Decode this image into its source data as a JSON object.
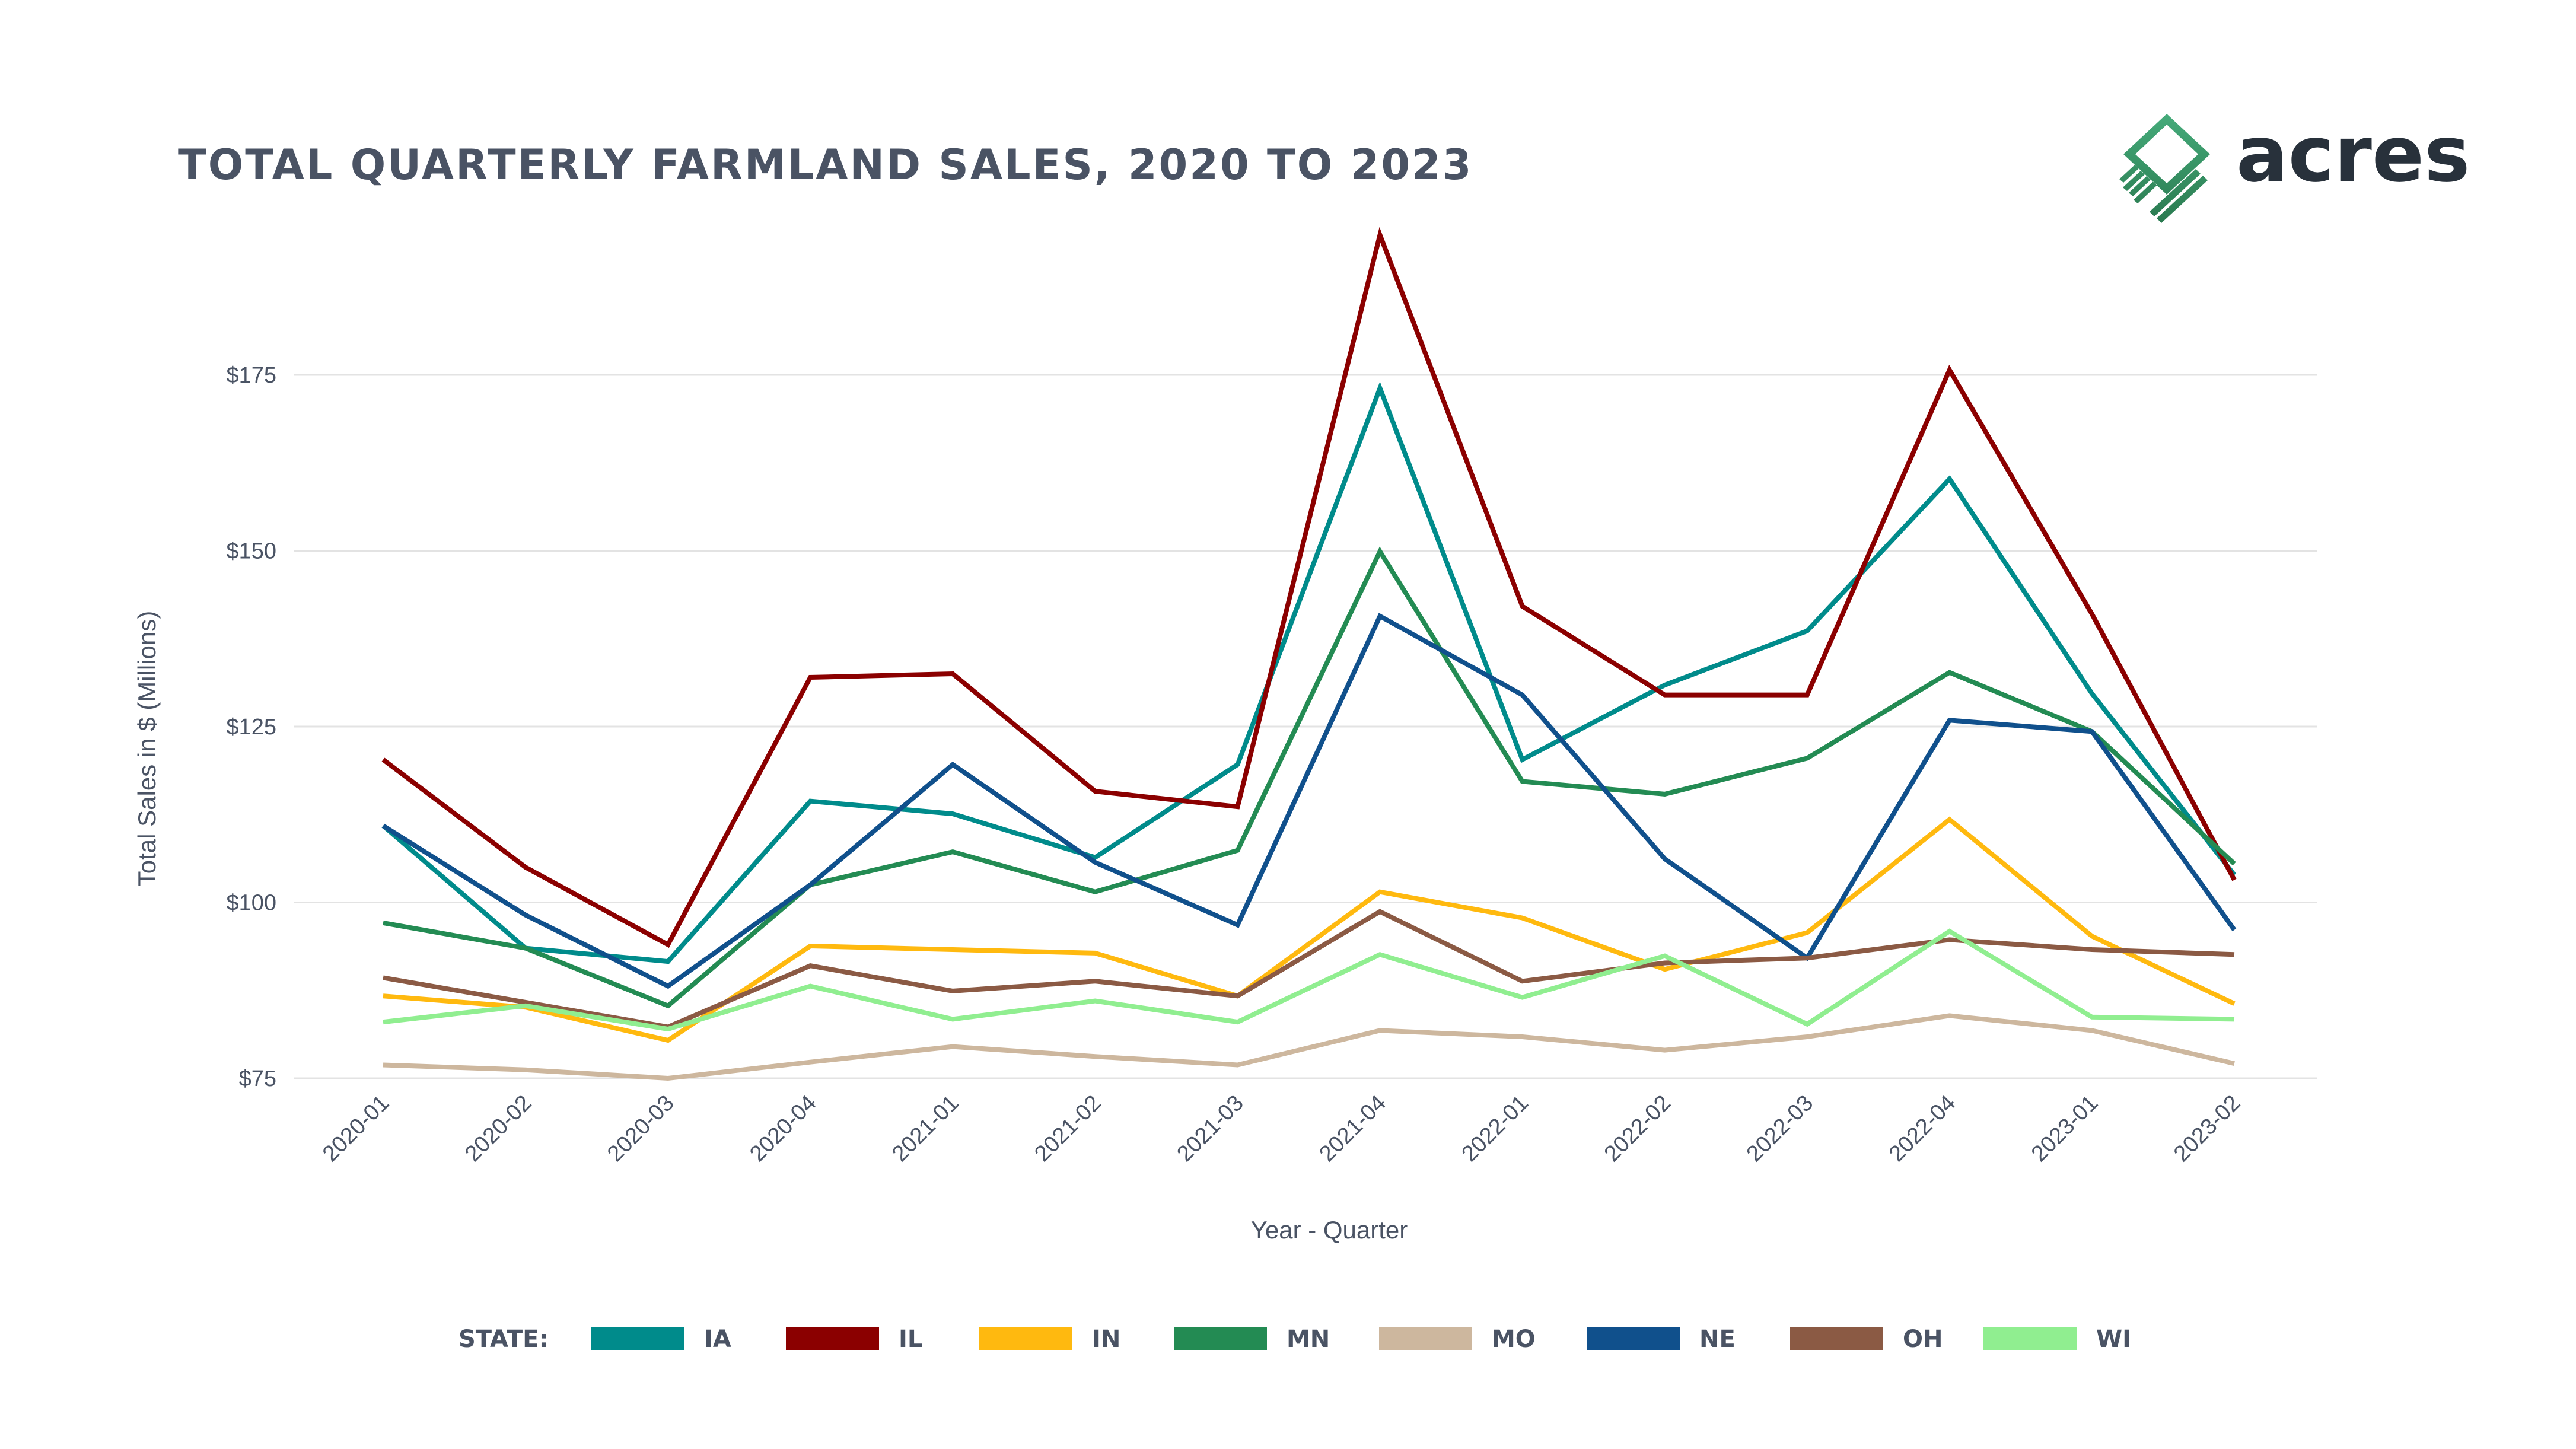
{
  "chart_data": {
    "type": "line",
    "title": "TOTAL QUARTERLY FARMLAND SALES, 2020 TO 2023",
    "xlabel": "Year - Quarter",
    "ylabel": "Total Sales in $ (Millions)",
    "ylim": [
      75,
      195
    ],
    "yticks": [
      75,
      100,
      125,
      150,
      175
    ],
    "ytick_labels": [
      "$75",
      "$100",
      "$125",
      "$150",
      "$175"
    ],
    "grid": "horizontal",
    "legend_title": "STATE:",
    "legend_placement": "bottom",
    "categories": [
      "2020-01",
      "2020-02",
      "2020-03",
      "2020-04",
      "2021-01",
      "2021-02",
      "2021-03",
      "2021-04",
      "2022-01",
      "2022-02",
      "2022-03",
      "2022-04",
      "2023-01",
      "2023-02"
    ],
    "series": [
      {
        "name": "IA",
        "color": "#008B8B",
        "values": [
          110.9,
          93.5,
          91.6,
          114.4,
          112.6,
          106.4,
          119.6,
          173.1,
          120.3,
          130.9,
          138.6,
          160.2,
          129.7,
          103.9
        ]
      },
      {
        "name": "IL",
        "color": "#8B0000",
        "values": [
          120.3,
          105.0,
          94.0,
          132.0,
          132.5,
          115.8,
          113.6,
          194.9,
          142.1,
          129.5,
          129.5,
          175.7,
          141.0,
          103.2
        ]
      },
      {
        "name": "IN",
        "color": "#FFB90F",
        "values": [
          86.7,
          85.1,
          80.4,
          93.8,
          93.3,
          92.8,
          86.7,
          101.5,
          97.8,
          90.5,
          95.7,
          111.8,
          95.2,
          85.6
        ]
      },
      {
        "name": "MN",
        "color": "#238B53",
        "values": [
          97.1,
          93.5,
          85.3,
          102.5,
          107.2,
          101.5,
          107.4,
          149.9,
          117.2,
          115.4,
          120.5,
          132.7,
          124.3,
          105.5
        ]
      },
      {
        "name": "MO",
        "color": "#CDB79E",
        "values": [
          76.9,
          76.2,
          75.0,
          77.3,
          79.5,
          78.1,
          76.9,
          81.8,
          80.9,
          79.0,
          80.9,
          83.9,
          81.8,
          77.1
        ]
      },
      {
        "name": "NE",
        "color": "#10508C",
        "values": [
          110.9,
          98.2,
          88.1,
          102.5,
          119.6,
          105.7,
          96.8,
          140.7,
          129.5,
          106.2,
          92.1,
          125.9,
          124.3,
          96.1
        ]
      },
      {
        "name": "OH",
        "color": "#8B5A44",
        "values": [
          89.3,
          85.8,
          82.3,
          91.0,
          87.4,
          88.8,
          86.7,
          98.7,
          88.8,
          91.4,
          92.1,
          94.7,
          93.3,
          92.6
        ]
      },
      {
        "name": "WI",
        "color": "#90EE90",
        "values": [
          83.0,
          85.3,
          82.0,
          88.1,
          83.4,
          86.0,
          83.0,
          92.6,
          86.5,
          92.4,
          82.7,
          95.9,
          83.7,
          83.4
        ]
      }
    ]
  },
  "logo": {
    "text": "acres",
    "color": "#3a9e6c"
  }
}
